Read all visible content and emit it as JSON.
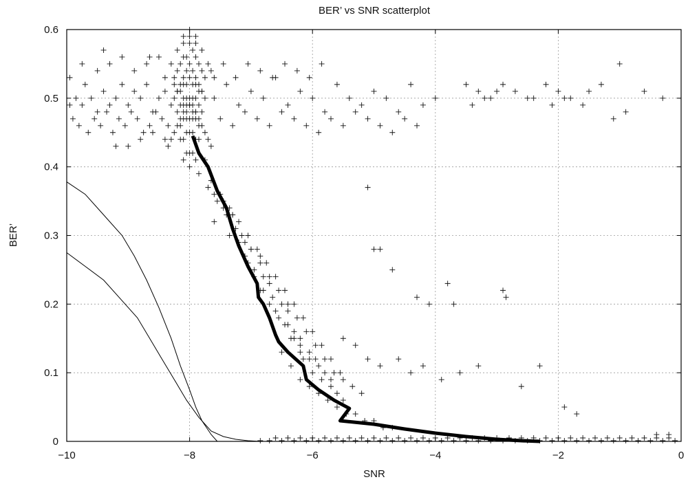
{
  "chart_data": {
    "type": "scatter",
    "title": "BER’ vs SNR scatterplot",
    "xlabel": "SNR",
    "ylabel": "BER’",
    "xlim": [
      -10,
      0
    ],
    "ylim": [
      0,
      0.6
    ],
    "xticks": [
      -10,
      -8,
      -6,
      -4,
      -2,
      0
    ],
    "yticks": [
      0,
      0.1,
      0.2,
      0.3,
      0.4,
      0.5,
      0.6
    ],
    "xtick_labels": [
      "−10",
      "−8",
      "−6",
      "−4",
      "−2",
      "0"
    ],
    "ytick_labels": [
      "0",
      "0.1",
      "0.2",
      "0.3",
      "0.4",
      "0.5",
      "0.6"
    ],
    "grid": true,
    "legend": "none",
    "series": [
      {
        "style": "thick-line",
        "x": [
          -7.95,
          -7.85,
          -7.7,
          -7.55,
          -7.4,
          -7.3,
          -7.2,
          -7.05,
          -6.9,
          -6.88,
          -6.8,
          -6.7,
          -6.6,
          -6.55,
          -6.4,
          -6.15,
          -6.1,
          -5.9,
          -5.65,
          -5.4,
          -5.55,
          -5.0,
          -4.5,
          -4.0,
          -3.5,
          -3.0,
          -2.6,
          -2.3
        ],
        "y": [
          0.445,
          0.42,
          0.4,
          0.365,
          0.34,
          0.31,
          0.285,
          0.255,
          0.23,
          0.21,
          0.2,
          0.18,
          0.155,
          0.145,
          0.13,
          0.11,
          0.09,
          0.075,
          0.06,
          0.048,
          0.03,
          0.025,
          0.018,
          0.012,
          0.007,
          0.003,
          0.001,
          0.0
        ]
      },
      {
        "style": "thin-line",
        "x": [
          -10.0,
          -9.7,
          -9.4,
          -9.1,
          -8.9,
          -8.7,
          -8.5,
          -8.3,
          -8.15,
          -8.0,
          -7.9,
          -7.8,
          -7.65,
          -7.55
        ],
        "y": [
          0.378,
          0.36,
          0.33,
          0.3,
          0.27,
          0.235,
          0.195,
          0.15,
          0.11,
          0.075,
          0.05,
          0.03,
          0.01,
          0.0
        ]
      },
      {
        "style": "thin-line",
        "x": [
          -10.0,
          -9.7,
          -9.4,
          -9.1,
          -8.85,
          -8.65,
          -8.45,
          -8.25,
          -8.05,
          -7.85,
          -7.65,
          -7.45,
          -7.25,
          -7.05,
          -6.85
        ],
        "y": [
          0.275,
          0.255,
          0.235,
          0.205,
          0.18,
          0.15,
          0.12,
          0.09,
          0.06,
          0.035,
          0.015,
          0.007,
          0.003,
          0.001,
          0.0
        ]
      },
      {
        "style": "plus-markers",
        "x": [
          -9.95,
          -9.85,
          -9.75,
          -9.7,
          -9.6,
          -9.5,
          -9.4,
          -9.3,
          -9.2,
          -9.1,
          -9.0,
          -8.9,
          -8.8,
          -8.7,
          -8.6,
          -8.5,
          -8.4,
          -8.3,
          -9.9,
          -9.8,
          -9.65,
          -9.55,
          -9.45,
          -9.35,
          -9.25,
          -9.15,
          -9.05,
          -8.95,
          -8.85,
          -8.75,
          -8.65,
          -8.55,
          -8.45,
          -8.35,
          -9.75,
          -9.5,
          -9.3,
          -9.1,
          -8.9,
          -8.7,
          -8.5,
          -9.95,
          -9.0,
          -8.8,
          -8.6,
          -9.2,
          -8.4,
          -8.25,
          -9.4,
          -8.65,
          -7.6,
          -7.4,
          -7.2,
          -7.0,
          -6.8,
          -6.6,
          -6.4,
          -6.2,
          -6.0,
          -5.8,
          -5.6,
          -5.4,
          -5.2,
          -5.0,
          -4.8,
          -4.6,
          -4.4,
          -4.2,
          -4.0,
          -7.5,
          -7.3,
          -7.1,
          -6.9,
          -6.7,
          -6.5,
          -6.3,
          -6.1,
          -5.9,
          -5.7,
          -5.5,
          -5.3,
          -5.1,
          -4.9,
          -4.7,
          -4.5,
          -4.3,
          -7.65,
          -7.45,
          -7.25,
          -7.05,
          -6.85,
          -6.65,
          -6.45,
          -6.25,
          -6.05,
          -5.85,
          -3.5,
          -3.3,
          -3.1,
          -2.9,
          -2.7,
          -2.5,
          -2.2,
          -2.0,
          -1.8,
          -1.5,
          -1.3,
          -1.0,
          -0.6,
          -0.3,
          -3.4,
          -3.2,
          -3.0,
          -2.4,
          -2.1,
          -1.9,
          -1.6,
          -1.1,
          -0.9,
          -5.1,
          -5.0,
          -4.9,
          -4.7,
          -4.3,
          -4.1,
          -3.8,
          -3.7,
          -5.5,
          -5.3,
          -5.1,
          -4.9,
          -4.6,
          -4.4,
          -4.2,
          -3.9,
          -3.6,
          -3.3,
          -2.9,
          -2.85,
          -2.6,
          -2.3,
          -1.9,
          -1.7,
          -0.4,
          -0.2
        ],
        "y": [
          0.53,
          0.5,
          0.49,
          0.52,
          0.5,
          0.48,
          0.51,
          0.49,
          0.5,
          0.52,
          0.49,
          0.51,
          0.5,
          0.52,
          0.48,
          0.5,
          0.51,
          0.49,
          0.47,
          0.46,
          0.45,
          0.47,
          0.46,
          0.48,
          0.45,
          0.47,
          0.46,
          0.48,
          0.47,
          0.45,
          0.46,
          0.48,
          0.47,
          0.46,
          0.55,
          0.54,
          0.55,
          0.56,
          0.54,
          0.55,
          0.56,
          0.49,
          0.43,
          0.44,
          0.45,
          0.43,
          0.44,
          0.52,
          0.57,
          0.56,
          0.5,
          0.52,
          0.49,
          0.51,
          0.5,
          0.53,
          0.49,
          0.51,
          0.5,
          0.48,
          0.52,
          0.5,
          0.49,
          0.51,
          0.5,
          0.48,
          0.52,
          0.49,
          0.5,
          0.47,
          0.46,
          0.48,
          0.47,
          0.46,
          0.48,
          0.47,
          0.46,
          0.45,
          0.47,
          0.46,
          0.48,
          0.47,
          0.46,
          0.45,
          0.47,
          0.46,
          0.54,
          0.55,
          0.53,
          0.55,
          0.54,
          0.53,
          0.55,
          0.54,
          0.53,
          0.55,
          0.52,
          0.51,
          0.5,
          0.52,
          0.51,
          0.5,
          0.52,
          0.51,
          0.5,
          0.51,
          0.52,
          0.55,
          0.51,
          0.5,
          0.49,
          0.5,
          0.51,
          0.5,
          0.49,
          0.5,
          0.49,
          0.47,
          0.48,
          0.37,
          0.28,
          0.28,
          0.25,
          0.21,
          0.2,
          0.23,
          0.2,
          0.15,
          0.14,
          0.12,
          0.11,
          0.12,
          0.1,
          0.11,
          0.09,
          0.1,
          0.11,
          0.22,
          0.21,
          0.08,
          0.11,
          0.05,
          0.04,
          0.01,
          0.01
        ]
      },
      {
        "style": "plus-markers",
        "x": [
          -8.0,
          -8.0,
          -7.95,
          -8.05,
          -7.9,
          -8.1,
          -7.85,
          -8.15,
          -7.8,
          -8.2,
          -7.75,
          -8.25,
          -8.0,
          -7.95,
          -8.05,
          -7.9,
          -8.1,
          -7.85,
          -8.15,
          -7.8,
          -8.2,
          -8.0,
          -7.95,
          -8.05,
          -7.9,
          -8.1,
          -7.85,
          -8.15,
          -8.0,
          -7.95,
          -8.05,
          -7.9,
          -8.1,
          -8.0,
          -7.95,
          -8.05,
          -7.9,
          -8.1,
          -7.85,
          -8.15,
          -7.8,
          -8.2,
          -7.75,
          -8.25,
          -7.7,
          -8.3,
          -7.65,
          -8.35,
          -8.0,
          -7.95,
          -8.05,
          -7.9,
          -8.1,
          -7.85,
          -8.15,
          -7.8,
          -8.2,
          -7.75,
          -8.25,
          -8.0,
          -7.95,
          -8.05,
          -7.9,
          -8.1,
          -7.85,
          -8.15,
          -7.8,
          -8.2,
          -8.0,
          -7.95,
          -8.05,
          -7.9,
          -8.1,
          -7.85,
          -8.15,
          -8.0,
          -7.95,
          -8.05,
          -7.9,
          -8.1,
          -8.0,
          -8.0,
          -7.9,
          -8.1,
          -7.8,
          -8.2,
          -7.7,
          -8.3,
          -7.6,
          -8.4,
          -7.9,
          -8.1
        ],
        "y": [
          0.6,
          0.58,
          0.57,
          0.56,
          0.56,
          0.56,
          0.55,
          0.55,
          0.54,
          0.54,
          0.53,
          0.53,
          0.53,
          0.52,
          0.52,
          0.52,
          0.52,
          0.51,
          0.51,
          0.51,
          0.51,
          0.5,
          0.5,
          0.5,
          0.5,
          0.5,
          0.49,
          0.49,
          0.49,
          0.49,
          0.49,
          0.48,
          0.48,
          0.47,
          0.47,
          0.47,
          0.47,
          0.47,
          0.46,
          0.46,
          0.46,
          0.46,
          0.45,
          0.45,
          0.44,
          0.44,
          0.43,
          0.43,
          0.55,
          0.54,
          0.54,
          0.53,
          0.53,
          0.52,
          0.52,
          0.51,
          0.51,
          0.5,
          0.5,
          0.49,
          0.48,
          0.48,
          0.48,
          0.49,
          0.47,
          0.47,
          0.48,
          0.48,
          0.45,
          0.45,
          0.45,
          0.44,
          0.44,
          0.44,
          0.44,
          0.42,
          0.42,
          0.42,
          0.41,
          0.41,
          0.4,
          0.59,
          0.59,
          0.59,
          0.57,
          0.57,
          0.55,
          0.55,
          0.53,
          0.53,
          0.58,
          0.58
        ]
      },
      {
        "style": "plus-markers",
        "x": [
          -7.85,
          -7.7,
          -7.6,
          -7.45,
          -7.3,
          -7.6,
          -7.55,
          -7.4,
          -7.25,
          -7.1,
          -7.0,
          -6.85,
          -7.35,
          -7.2,
          -7.1,
          -6.95,
          -6.8,
          -6.7,
          -7.05,
          -6.95,
          -6.8,
          -6.65,
          -6.5,
          -6.4,
          -6.85,
          -6.7,
          -6.55,
          -6.4,
          -6.3,
          -6.2,
          -6.6,
          -6.45,
          -6.3,
          -6.2,
          -6.05,
          -5.95,
          -6.35,
          -6.2,
          -6.05,
          -5.9,
          -5.8,
          -5.7,
          -6.15,
          -6.0,
          -5.85,
          -5.7,
          -5.6,
          -5.5,
          -7.75,
          -7.65,
          -7.5,
          -7.35,
          -7.2,
          -7.05,
          -6.9,
          -6.75,
          -6.6,
          -6.45,
          -6.3,
          -6.15,
          -6.0,
          -5.85,
          -5.7,
          -5.55,
          -7.45,
          -7.3,
          -7.15,
          -7.0,
          -6.85,
          -6.7,
          -6.55,
          -6.4,
          -6.25,
          -6.1,
          -5.95,
          -5.8,
          -5.65,
          -5.5,
          -5.35,
          -5.2,
          -6.5,
          -6.35,
          -6.2,
          -6.05,
          -5.9,
          -5.75,
          -5.6,
          -5.45,
          -5.3,
          -5.15,
          -5.0,
          -4.85,
          -4.7
        ],
        "y": [
          0.39,
          0.37,
          0.36,
          0.34,
          0.33,
          0.32,
          0.35,
          0.33,
          0.31,
          0.29,
          0.28,
          0.27,
          0.3,
          0.29,
          0.27,
          0.25,
          0.24,
          0.23,
          0.26,
          0.24,
          0.22,
          0.21,
          0.2,
          0.19,
          0.22,
          0.2,
          0.18,
          0.17,
          0.16,
          0.15,
          0.19,
          0.17,
          0.15,
          0.14,
          0.13,
          0.12,
          0.15,
          0.13,
          0.12,
          0.11,
          0.1,
          0.09,
          0.12,
          0.1,
          0.09,
          0.08,
          0.07,
          0.06,
          0.41,
          0.38,
          0.36,
          0.34,
          0.32,
          0.3,
          0.28,
          0.26,
          0.24,
          0.22,
          0.2,
          0.18,
          0.16,
          0.14,
          0.12,
          0.1,
          0.35,
          0.33,
          0.3,
          0.28,
          0.26,
          0.24,
          0.22,
          0.2,
          0.18,
          0.16,
          0.14,
          0.12,
          0.1,
          0.09,
          0.08,
          0.07,
          0.13,
          0.11,
          0.09,
          0.08,
          0.07,
          0.06,
          0.05,
          0.04,
          0.04,
          0.03,
          0.03,
          0.02,
          0.02
        ]
      },
      {
        "style": "plus-markers",
        "x": [
          -6.85,
          -6.7,
          -6.5,
          -6.3,
          -6.1,
          -5.9,
          -5.7,
          -5.5,
          -5.3,
          -5.1,
          -4.9,
          -4.7,
          -4.5,
          -4.3,
          -4.1,
          -3.9,
          -3.7,
          -3.5,
          -3.3,
          -3.1,
          -2.9,
          -2.7,
          -2.5,
          -2.3,
          -2.1,
          -1.9,
          -1.7,
          -1.5,
          -1.3,
          -1.1,
          -0.9,
          -0.7,
          -0.5,
          -0.3,
          -0.1,
          -6.6,
          -6.4,
          -6.2,
          -6.0,
          -5.8,
          -5.6,
          -5.4,
          -5.2,
          -5.0,
          -4.8,
          -4.6,
          -4.4,
          -4.2,
          -4.0,
          -3.8,
          -3.6,
          -3.4,
          -3.2,
          -3.0,
          -2.8,
          -2.6,
          -2.4,
          -2.2,
          -2.0,
          -1.8,
          -1.6,
          -1.4,
          -1.2,
          -1.0,
          -0.8,
          -0.6,
          -0.4,
          -0.2
        ],
        "y": [
          0.001,
          0.001,
          0.001,
          0.001,
          0.001,
          0.001,
          0.001,
          0.001,
          0.001,
          0.001,
          0.001,
          0.001,
          0.001,
          0.001,
          0.001,
          0.001,
          0.001,
          0.001,
          0.001,
          0.001,
          0.001,
          0.001,
          0.001,
          0.001,
          0.001,
          0.001,
          0.001,
          0.001,
          0.001,
          0.001,
          0.001,
          0.001,
          0.001,
          0.001,
          0.001,
          0.005,
          0.005,
          0.005,
          0.005,
          0.005,
          0.005,
          0.005,
          0.005,
          0.005,
          0.005,
          0.005,
          0.005,
          0.005,
          0.005,
          0.005,
          0.005,
          0.005,
          0.005,
          0.005,
          0.005,
          0.005,
          0.005,
          0.005,
          0.005,
          0.005,
          0.005,
          0.005,
          0.005,
          0.005,
          0.005,
          0.005,
          0.005,
          0.005
        ]
      }
    ]
  }
}
